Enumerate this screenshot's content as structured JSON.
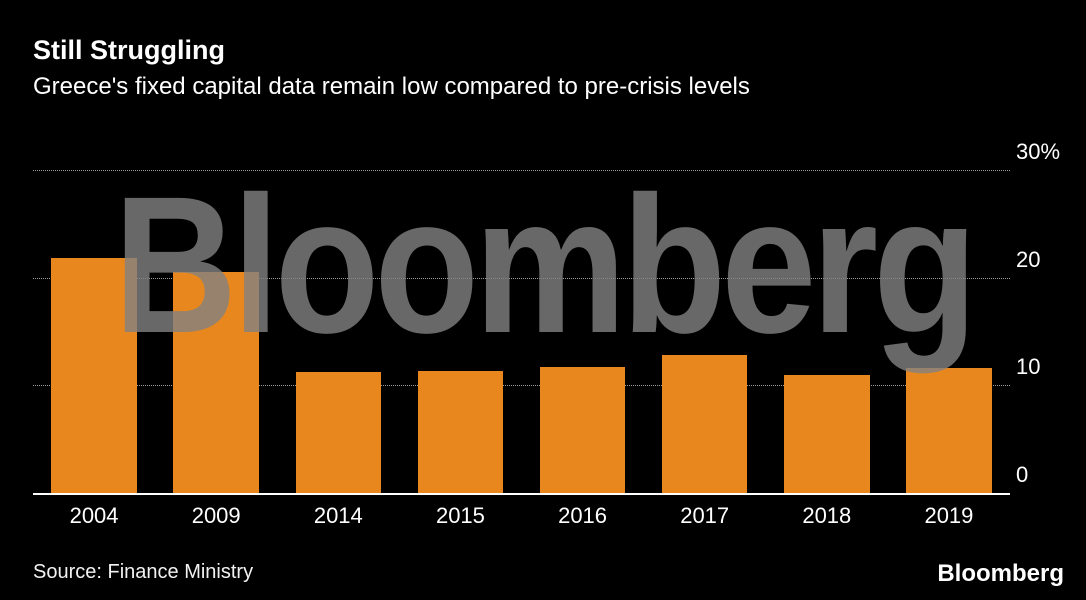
{
  "header": {
    "title": "Still Struggling",
    "subtitle": "Greece's fixed capital data remain low compared to pre-crisis levels"
  },
  "watermark": {
    "text": "Bloomberg"
  },
  "footer": {
    "source": "Source: Finance Ministry",
    "brand_logo": "Bloomberg"
  },
  "colors": {
    "background": "#000000",
    "bar": "#E8871D",
    "text": "#FFFFFF",
    "grid": "#9A9A9A",
    "watermark": "#828282"
  },
  "chart_data": {
    "type": "bar",
    "title": "Still Struggling",
    "subtitle": "Greece's fixed capital data remain low compared to pre-crisis levels",
    "categories": [
      "2004",
      "2009",
      "2014",
      "2015",
      "2016",
      "2017",
      "2018",
      "2019"
    ],
    "values": [
      21.8,
      20.5,
      11.2,
      11.3,
      11.7,
      12.8,
      11.0,
      11.6
    ],
    "xlabel": "",
    "ylabel": "",
    "ylim": [
      0,
      30
    ],
    "yticks": [
      {
        "value": 30,
        "label": "30%"
      },
      {
        "value": 20,
        "label": "20"
      },
      {
        "value": 10,
        "label": "10"
      },
      {
        "value": 0,
        "label": "0"
      }
    ],
    "grid": "horizontal-dotted",
    "legend_position": "none",
    "bar_color": "#E8871D",
    "source": "Source: Finance Ministry"
  }
}
